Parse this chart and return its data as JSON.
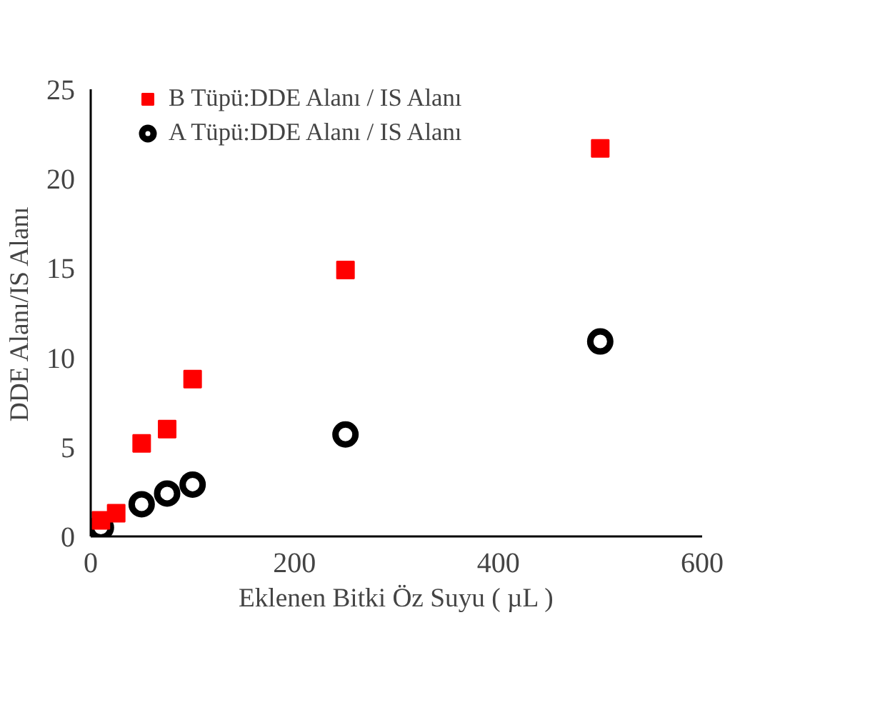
{
  "chart_data": {
    "type": "scatter",
    "xlabel": "Eklenen Bitki Öz Suyu ( µL )",
    "ylabel": "DDE Alanı/IS Alanı",
    "series": [
      {
        "name": "B Tüpü:DDE Alanı / IS Alanı",
        "color": "#ff0000",
        "marker": "square",
        "x": [
          10,
          25,
          50,
          75,
          100,
          250,
          500
        ],
        "values": [
          0.9,
          1.3,
          5.2,
          6.0,
          8.8,
          14.9,
          21.7
        ]
      },
      {
        "name": "A Tüpü:DDE Alanı / IS Alanı",
        "color": "#000000",
        "marker": "circle",
        "x": [
          10,
          50,
          75,
          100,
          250,
          500
        ],
        "values": [
          0.5,
          1.8,
          2.4,
          2.9,
          5.7,
          10.9
        ]
      }
    ],
    "xlim": [
      0,
      600
    ],
    "ylim": [
      0,
      25
    ],
    "xticks": [
      0,
      200,
      400,
      600
    ],
    "yticks": [
      0,
      5,
      10,
      15,
      20,
      25
    ],
    "grid": false,
    "legend": "top"
  }
}
